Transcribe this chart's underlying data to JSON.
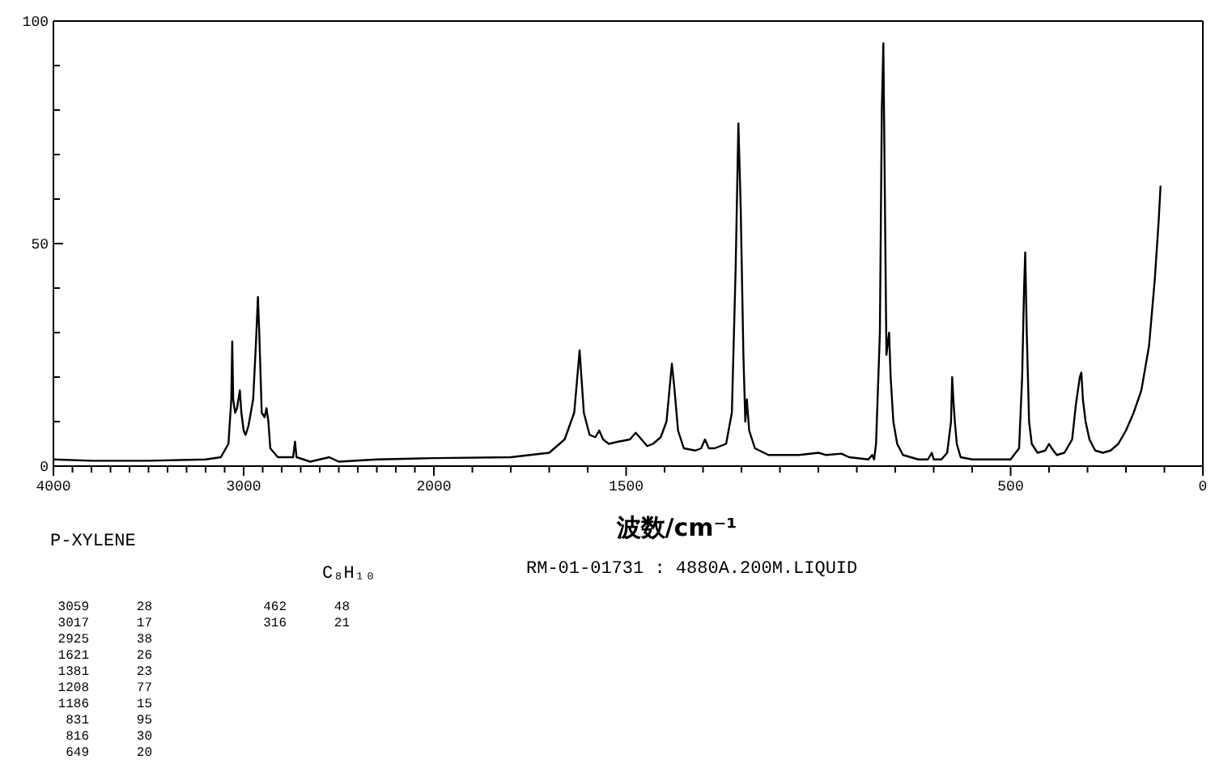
{
  "chart_data": [
    {
      "type": "line",
      "xlim": [
        4000,
        2000
      ],
      "xticks": [
        4000,
        {
          "value": 3900,
          "label": null
        },
        {
          "value": 3800,
          "label": null
        },
        {
          "value": 3700,
          "label": null
        },
        {
          "value": 3600,
          "label": null
        },
        {
          "value": 3500,
          "label": null
        },
        {
          "value": 3400,
          "label": null
        },
        {
          "value": 3300,
          "label": null
        },
        {
          "value": 3200,
          "label": null
        },
        {
          "value": 3100,
          "label": null
        },
        3000,
        {
          "value": 2900,
          "label": null
        },
        {
          "value": 2800,
          "label": null
        },
        {
          "value": 2700,
          "label": null
        },
        {
          "value": 2600,
          "label": null
        },
        {
          "value": 2500,
          "label": null
        },
        {
          "value": 2400,
          "label": null
        },
        {
          "value": 2300,
          "label": null
        },
        {
          "value": 2200,
          "label": null
        },
        {
          "value": 2100,
          "label": null
        },
        2000
      ],
      "ylim": [
        0,
        100
      ],
      "yticks": [
        0,
        {
          "value": 10,
          "label": null
        },
        {
          "value": 20,
          "label": null
        },
        {
          "value": 30,
          "label": null
        },
        {
          "value": 40,
          "label": null
        },
        50,
        {
          "value": 60,
          "label": null
        },
        {
          "value": 70,
          "label": null
        },
        {
          "value": 80,
          "label": null
        },
        {
          "value": 90,
          "label": null
        },
        100
      ],
      "grid": false,
      "line_style": "solid",
      "series": [
        {
          "color": "#000000",
          "x": [
            4000,
            3800,
            3500,
            3200,
            3120,
            3080,
            3065,
            3060,
            3055,
            3045,
            3035,
            3020,
            3012,
            3000,
            2990,
            2975,
            2950,
            2935,
            2925,
            2918,
            2905,
            2890,
            2880,
            2870,
            2860,
            2820,
            2740,
            2730,
            2722,
            2650,
            2550,
            2500,
            2300,
            2000
          ],
          "values": [
            1.5,
            1.2,
            1.2,
            1.5,
            2,
            5,
            15,
            28,
            15,
            12,
            13,
            17,
            12,
            8,
            7,
            9,
            15,
            28,
            38,
            30,
            12,
            11,
            13,
            10,
            4,
            2,
            2,
            5.5,
            2,
            1,
            2,
            1,
            1.5,
            1.8
          ]
        }
      ],
      "annotations": [
        "P-XYLENE",
        "C₈H₁₀",
        "RM-01-01731 : 4880A.200M.LIQUID",
        "3059 28",
        "3017 17",
        "2925 38",
        "1621 26",
        "1381 23",
        "1208 77",
        "1186 15",
        "831 95",
        "816 30",
        "649 20",
        "462 48",
        "316 21"
      ]
    },
    {
      "type": "line",
      "xlabel": "波数/cm⁻¹",
      "xlim": [
        2000,
        0
      ],
      "xticks": [
        {
          "value": 1900,
          "label": null
        },
        {
          "value": 1800,
          "label": null
        },
        {
          "value": 1700,
          "label": null
        },
        {
          "value": 1600,
          "label": null
        },
        1500,
        {
          "value": 1400,
          "label": null
        },
        {
          "value": 1300,
          "label": null
        },
        {
          "value": 1200,
          "label": null
        },
        {
          "value": 1100,
          "label": null
        },
        {
          "value": 1000,
          "label": null
        },
        {
          "value": 900,
          "label": null
        },
        {
          "value": 800,
          "label": null
        },
        {
          "value": 700,
          "label": null
        },
        {
          "value": 600,
          "label": null
        },
        500,
        {
          "value": 400,
          "label": null
        },
        {
          "value": 300,
          "label": null
        },
        {
          "value": 200,
          "label": null
        },
        {
          "value": 100,
          "label": null
        },
        0
      ],
      "ylim": [
        0,
        100
      ],
      "tick_labels": "x",
      "grid": false,
      "line_style": "solid",
      "series": [
        {
          "color": "#000000",
          "x": [
            2000,
            1800,
            1700,
            1660,
            1635,
            1621,
            1610,
            1595,
            1580,
            1570,
            1560,
            1545,
            1520,
            1490,
            1475,
            1460,
            1445,
            1430,
            1410,
            1395,
            1381,
            1375,
            1365,
            1350,
            1320,
            1305,
            1295,
            1285,
            1270,
            1240,
            1225,
            1215,
            1208,
            1202,
            1195,
            1190,
            1186,
            1180,
            1165,
            1130,
            1050,
            1000,
            980,
            940,
            920,
            870,
            860,
            855,
            850,
            840,
            835,
            831,
            827,
            823,
            819,
            816,
            812,
            805,
            795,
            780,
            740,
            715,
            705,
            700,
            680,
            665,
            655,
            652,
            649,
            645,
            640,
            630,
            600,
            500,
            478,
            470,
            465,
            462,
            458,
            452,
            445,
            430,
            410,
            400,
            393,
            380,
            360,
            340,
            330,
            320,
            316,
            312,
            305,
            295,
            280,
            260,
            240,
            220,
            200,
            180,
            160,
            140,
            125,
            115,
            110
          ],
          "values": [
            1.8,
            2,
            3,
            6,
            12,
            26,
            12,
            7,
            6.5,
            8,
            6,
            5,
            5.5,
            6,
            7.5,
            6,
            4.5,
            5,
            6.5,
            10,
            23,
            18,
            8,
            4,
            3.5,
            4,
            6,
            4,
            4,
            5,
            12,
            45,
            77,
            58,
            25,
            10,
            15,
            8,
            4,
            2.5,
            2.5,
            3,
            2.5,
            2.8,
            2,
            1.5,
            2.5,
            1.5,
            5,
            30,
            80,
            95,
            60,
            25,
            28,
            30,
            20,
            10,
            5,
            2.5,
            1.5,
            1.5,
            3,
            1.5,
            1.5,
            3,
            10,
            20,
            15,
            10,
            5,
            2,
            1.5,
            1.5,
            4,
            20,
            40,
            48,
            30,
            10,
            5,
            3,
            3.5,
            5,
            4,
            2.5,
            3,
            6,
            14,
            20,
            21,
            15,
            10,
            6,
            3.5,
            3,
            3.5,
            5,
            8,
            12,
            17,
            27,
            42,
            55,
            63
          ]
        }
      ]
    }
  ]
}
